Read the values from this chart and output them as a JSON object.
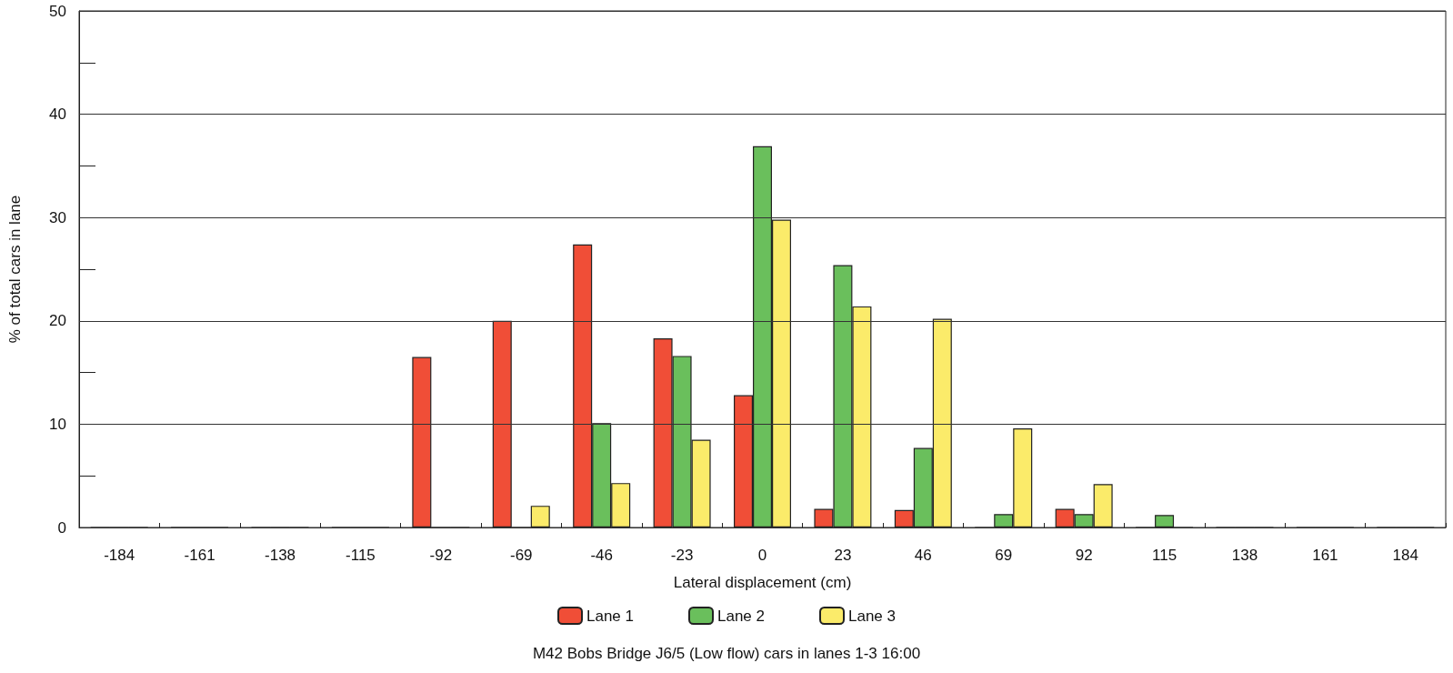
{
  "chart_data": {
    "type": "bar",
    "title": "M42 Bobs Bridge J6/5 (Low flow) cars in lanes 1-3 16:00",
    "xlabel": "Lateral displacement (cm)",
    "ylabel": "% of total cars in lane",
    "categories": [
      "-184",
      "-161",
      "-138",
      "-115",
      "-92",
      "-69",
      "-46",
      "-23",
      "0",
      "23",
      "46",
      "69",
      "92",
      "115",
      "138",
      "161",
      "184"
    ],
    "series": [
      {
        "name": "Lane 1",
        "color": "#f04e37",
        "values": [
          0,
          0,
          0,
          0,
          16.5,
          20.0,
          27.4,
          18.3,
          12.8,
          1.8,
          1.7,
          0,
          1.8,
          0,
          0,
          0,
          0
        ]
      },
      {
        "name": "Lane 2",
        "color": "#6abf5c",
        "values": [
          0,
          0,
          0,
          0,
          0,
          0,
          10.1,
          16.6,
          36.9,
          25.4,
          7.7,
          1.3,
          1.3,
          1.2,
          0,
          0,
          0
        ]
      },
      {
        "name": "Lane 3",
        "color": "#fbeb6a",
        "values": [
          0,
          0,
          0,
          0,
          0,
          2.1,
          4.3,
          8.5,
          29.8,
          21.4,
          20.2,
          9.6,
          4.2,
          0,
          0,
          0,
          0
        ]
      }
    ],
    "ylim": [
      0,
      50
    ],
    "yticks": [
      0,
      10,
      20,
      30,
      40,
      50
    ],
    "grid": "y",
    "legend": "bottom"
  }
}
